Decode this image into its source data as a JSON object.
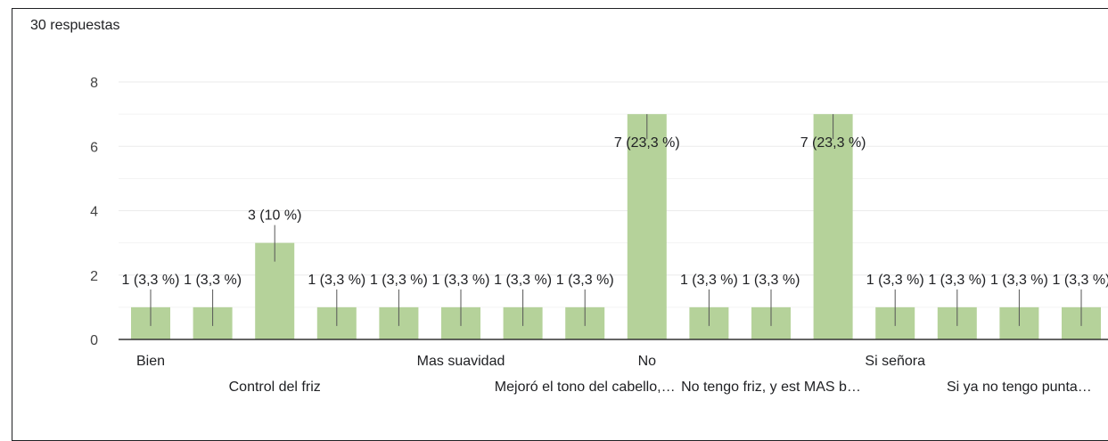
{
  "header": {
    "responses": "30 respuestas"
  },
  "colors": {
    "bar": "#b5d29a",
    "grid": "#ebebeb",
    "axis": "#333333",
    "leader": "#555555"
  },
  "chart_data": {
    "type": "bar",
    "categories": [
      "Bien",
      "",
      "Control del friz",
      "",
      "",
      "Mas suavidad",
      "",
      "Mejoró el tono del cabello,…",
      "No",
      "",
      "No tengo friz, y est MAS b…",
      "",
      "Si señora",
      "",
      "Si ya no tengo punta…",
      ""
    ],
    "values": [
      1,
      1,
      3,
      1,
      1,
      1,
      1,
      1,
      7,
      1,
      1,
      7,
      1,
      1,
      1,
      1
    ],
    "data_labels": [
      "1 (3,3 %)",
      "1 (3,3 %)",
      "3 (10 %)",
      "1 (3,3 %)",
      "1 (3,3 %)",
      "1 (3,3 %)",
      "1 (3,3 %)",
      "1 (3,3 %)",
      "7 (23,3 %)",
      "1 (3,3 %)",
      "1 (3,3 %)",
      "7 (23,3 %)",
      "1 (3,3 %)",
      "1 (3,3 %)",
      "1 (3,3 %)",
      "1 (3,3 %)"
    ],
    "yticks": [
      0,
      2,
      4,
      6,
      8
    ],
    "ylim": [
      0,
      8
    ],
    "grid": true,
    "title": "",
    "xlabel": "",
    "ylabel": ""
  }
}
